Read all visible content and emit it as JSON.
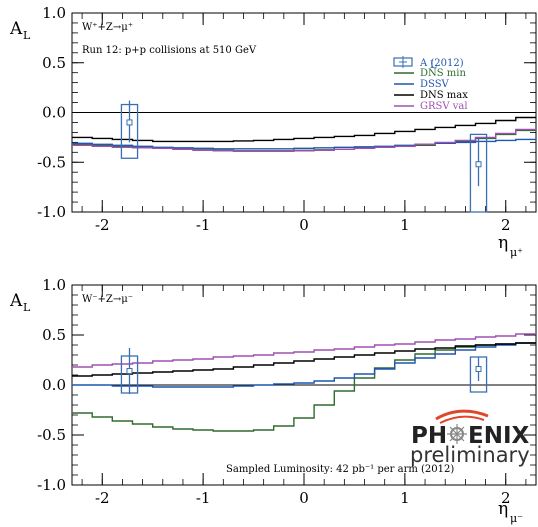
{
  "colors": {
    "dns_min": "#2f6b2f",
    "dssv": "#1f56b0",
    "dns_max": "#000000",
    "grsv_val": "#a050b0",
    "data": "#3a6fb5",
    "logo_accent": "#e0472a"
  },
  "logo": {
    "text_left": "PH",
    "text_right": "ENIX",
    "subtitle": "preliminary"
  },
  "chart_data": [
    {
      "type": "line",
      "process": "W⁺+Z→μ⁺",
      "run_note": "Run 12: p+p collisions at 510 GeV",
      "ylabel": "A",
      "ylabel_sub": "L",
      "xlabel": "η",
      "xlabel_sub": "μ⁺",
      "xlim": [
        -2.3,
        2.3
      ],
      "ylim": [
        -1.0,
        1.0
      ],
      "xticks": [
        "-2",
        "-1",
        "0",
        "1",
        "2"
      ],
      "yticks": [
        "1.0",
        "0.5",
        "0.0",
        "-0.5",
        "-1.0"
      ],
      "legend": {
        "position": "top-right",
        "entries": [
          "A (2012)",
          "DNS min",
          "DSSV",
          "DNS max",
          "GRSV val"
        ],
        "first_entry_sub": "L"
      },
      "x": [
        -2.3,
        -2.1,
        -1.9,
        -1.7,
        -1.5,
        -1.3,
        -1.1,
        -0.9,
        -0.7,
        -0.5,
        -0.3,
        -0.1,
        0.1,
        0.3,
        0.5,
        0.7,
        0.9,
        1.1,
        1.3,
        1.5,
        1.7,
        1.9,
        2.1,
        2.3
      ],
      "series": [
        {
          "name": "DNS min",
          "key": "dns_min",
          "values": [
            -0.32,
            -0.33,
            -0.34,
            -0.35,
            -0.36,
            -0.37,
            -0.375,
            -0.38,
            -0.385,
            -0.385,
            -0.385,
            -0.38,
            -0.375,
            -0.37,
            -0.36,
            -0.35,
            -0.34,
            -0.33,
            -0.31,
            -0.29,
            -0.26,
            -0.22,
            -0.18,
            -0.15
          ]
        },
        {
          "name": "DSSV",
          "key": "dssv",
          "values": [
            -0.31,
            -0.32,
            -0.33,
            -0.34,
            -0.35,
            -0.355,
            -0.36,
            -0.365,
            -0.365,
            -0.365,
            -0.365,
            -0.36,
            -0.355,
            -0.35,
            -0.345,
            -0.34,
            -0.33,
            -0.32,
            -0.31,
            -0.3,
            -0.29,
            -0.28,
            -0.27,
            -0.26
          ]
        },
        {
          "name": "DNS max",
          "key": "dns_max",
          "values": [
            -0.25,
            -0.26,
            -0.27,
            -0.28,
            -0.29,
            -0.29,
            -0.29,
            -0.29,
            -0.285,
            -0.28,
            -0.27,
            -0.26,
            -0.25,
            -0.24,
            -0.23,
            -0.21,
            -0.19,
            -0.17,
            -0.15,
            -0.13,
            -0.11,
            -0.08,
            -0.05,
            -0.03
          ]
        },
        {
          "name": "GRSV val",
          "key": "grsv_val",
          "values": [
            -0.33,
            -0.34,
            -0.35,
            -0.355,
            -0.36,
            -0.37,
            -0.38,
            -0.385,
            -0.39,
            -0.39,
            -0.39,
            -0.385,
            -0.38,
            -0.37,
            -0.36,
            -0.35,
            -0.34,
            -0.32,
            -0.3,
            -0.28,
            -0.25,
            -0.21,
            -0.17,
            -0.14
          ]
        }
      ],
      "points": [
        {
          "x": -1.73,
          "y": -0.1,
          "err_low": 0.2,
          "err_high": 0.22,
          "box_low": 0.36,
          "box_high": 0.18,
          "box_halfwidth": 0.08
        },
        {
          "x": 1.73,
          "y": -0.52,
          "err_low": 0.22,
          "err_high": 0.26,
          "box_low": 0.48,
          "box_high": 0.3,
          "box_halfwidth": 0.08
        }
      ]
    },
    {
      "type": "line",
      "process": "W⁻+Z→μ⁻",
      "luminosity_note": "Sampled Luminosity: 42 pb⁻¹ per arm (2012)",
      "ylabel": "A",
      "ylabel_sub": "L",
      "xlabel": "η",
      "xlabel_sub": "μ⁻",
      "xlim": [
        -2.3,
        2.3
      ],
      "ylim": [
        -1.0,
        1.0
      ],
      "xticks": [
        "-2",
        "-1",
        "0",
        "1",
        "2"
      ],
      "yticks": [
        "1.0",
        "0.5",
        "0.0",
        "-0.5",
        "-1.0"
      ],
      "x": [
        -2.3,
        -2.1,
        -1.9,
        -1.7,
        -1.5,
        -1.3,
        -1.1,
        -0.9,
        -0.7,
        -0.5,
        -0.3,
        -0.1,
        0.1,
        0.3,
        0.5,
        0.7,
        0.9,
        1.1,
        1.3,
        1.5,
        1.7,
        1.9,
        2.1,
        2.3
      ],
      "series": [
        {
          "name": "DNS min",
          "key": "dns_min",
          "values": [
            -0.28,
            -0.32,
            -0.36,
            -0.39,
            -0.42,
            -0.44,
            -0.45,
            -0.46,
            -0.46,
            -0.45,
            -0.41,
            -0.33,
            -0.2,
            -0.06,
            0.07,
            0.17,
            0.25,
            0.31,
            0.35,
            0.38,
            0.4,
            0.41,
            0.42,
            0.43
          ]
        },
        {
          "name": "DSSV",
          "key": "dssv",
          "values": [
            0.0,
            0.0,
            -0.01,
            -0.01,
            -0.02,
            -0.02,
            -0.02,
            -0.02,
            -0.01,
            0.0,
            0.01,
            0.02,
            0.04,
            0.07,
            0.11,
            0.16,
            0.22,
            0.27,
            0.31,
            0.35,
            0.38,
            0.4,
            0.42,
            0.43
          ]
        },
        {
          "name": "DNS max",
          "key": "dns_max",
          "values": [
            0.09,
            0.1,
            0.11,
            0.12,
            0.13,
            0.14,
            0.15,
            0.16,
            0.18,
            0.2,
            0.22,
            0.24,
            0.26,
            0.28,
            0.3,
            0.32,
            0.34,
            0.36,
            0.37,
            0.39,
            0.4,
            0.41,
            0.42,
            0.43
          ]
        },
        {
          "name": "GRSV val",
          "key": "grsv_val",
          "values": [
            0.18,
            0.2,
            0.21,
            0.22,
            0.24,
            0.25,
            0.26,
            0.28,
            0.29,
            0.3,
            0.32,
            0.33,
            0.35,
            0.36,
            0.38,
            0.4,
            0.41,
            0.43,
            0.45,
            0.46,
            0.48,
            0.49,
            0.51,
            0.53
          ]
        }
      ],
      "points": [
        {
          "x": -1.73,
          "y": 0.14,
          "err_low": 0.23,
          "err_high": 0.23,
          "box_low": 0.22,
          "box_high": 0.15,
          "box_halfwidth": 0.08
        },
        {
          "x": 1.73,
          "y": 0.16,
          "err_low": 0.12,
          "err_high": 0.12,
          "box_low": 0.23,
          "box_high": 0.12,
          "box_halfwidth": 0.08
        }
      ]
    }
  ]
}
